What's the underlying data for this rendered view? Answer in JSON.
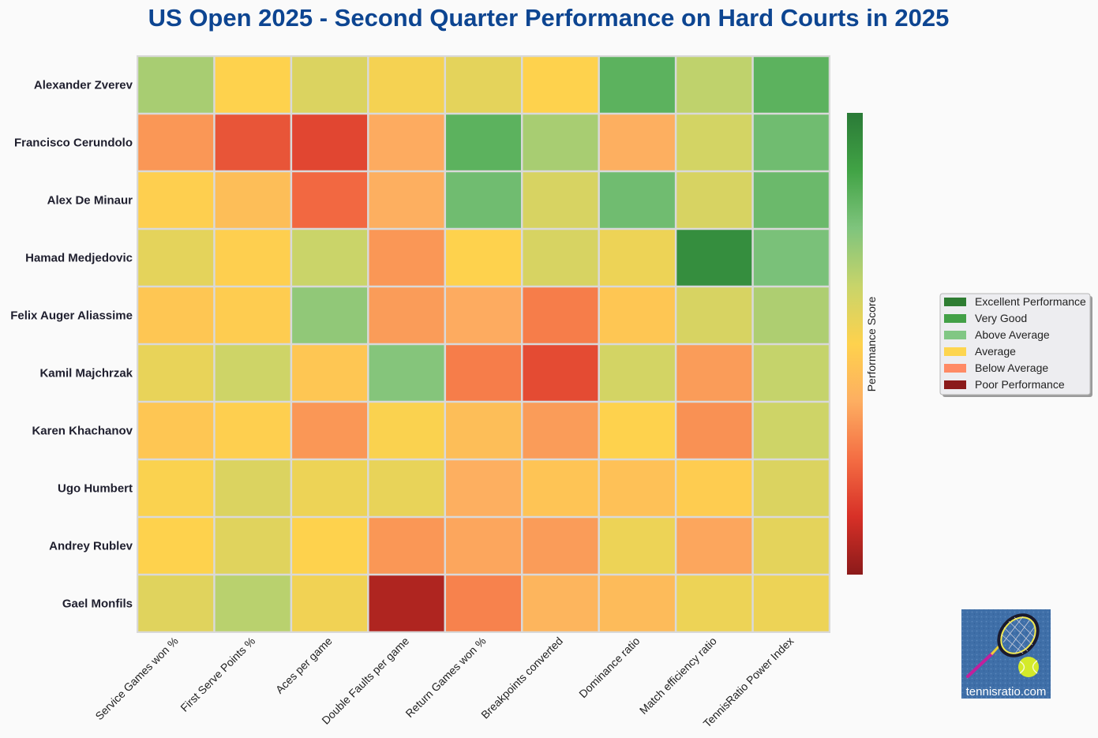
{
  "chart_data": {
    "type": "heatmap",
    "title": "US Open 2025 - Second Quarter Performance on Hard Courts in 2025",
    "rows": [
      "Alexander Zverev",
      "Francisco Cerundolo",
      "Alex De Minaur",
      "Hamad Medjedovic",
      "Felix Auger Aliassime",
      "Kamil Majchrzak",
      "Karen Khachanov",
      "Ugo Humbert",
      "Andrey Rublev",
      "Gael Monfils"
    ],
    "columns": [
      "Service Games won %",
      "First Serve Points %",
      "Aces per game",
      "Double Faults per game",
      "Return Games won %",
      "Breakpoints converted",
      "Dominance ratio",
      "Match efficiency ratio",
      "TennisRatio Power Index"
    ],
    "values": [
      [
        0.68,
        0.5,
        0.58,
        0.52,
        0.56,
        0.5,
        0.82,
        0.64,
        0.82
      ],
      [
        0.33,
        0.2,
        0.17,
        0.37,
        0.82,
        0.68,
        0.38,
        0.6,
        0.78
      ],
      [
        0.49,
        0.43,
        0.24,
        0.38,
        0.78,
        0.59,
        0.78,
        0.59,
        0.79
      ],
      [
        0.56,
        0.49,
        0.62,
        0.33,
        0.5,
        0.59,
        0.54,
        0.94,
        0.76
      ],
      [
        0.46,
        0.48,
        0.72,
        0.34,
        0.37,
        0.28,
        0.46,
        0.59,
        0.67
      ],
      [
        0.55,
        0.61,
        0.46,
        0.74,
        0.28,
        0.18,
        0.6,
        0.34,
        0.63
      ],
      [
        0.46,
        0.49,
        0.33,
        0.51,
        0.43,
        0.34,
        0.5,
        0.32,
        0.61
      ],
      [
        0.51,
        0.58,
        0.54,
        0.55,
        0.38,
        0.45,
        0.44,
        0.48,
        0.58
      ],
      [
        0.5,
        0.57,
        0.5,
        0.33,
        0.36,
        0.34,
        0.54,
        0.36,
        0.56
      ],
      [
        0.57,
        0.65,
        0.53,
        0.06,
        0.29,
        0.4,
        0.42,
        0.54,
        0.54
      ]
    ],
    "colorbar": {
      "label": "Performance Score",
      "scale": "red-yellow-green",
      "range": [
        0,
        1
      ],
      "stops": [
        "#8b1a1a",
        "#d73027",
        "#f46d43",
        "#fdae61",
        "#fed24d",
        "#c8d46a",
        "#7fc47d",
        "#41a345",
        "#2a7a37"
      ]
    },
    "legend": {
      "placement": "right",
      "entries": [
        {
          "label": "Excellent Performance",
          "color": "#2e7d32"
        },
        {
          "label": "Very Good",
          "color": "#43a047"
        },
        {
          "label": "Above Average",
          "color": "#81c784"
        },
        {
          "label": "Average",
          "color": "#fdd54f"
        },
        {
          "label": "Below Average",
          "color": "#ff8a65"
        },
        {
          "label": "Poor Performance",
          "color": "#8b1a1a"
        }
      ]
    },
    "grid": true
  },
  "logo": {
    "text": "tennisratio.com"
  }
}
